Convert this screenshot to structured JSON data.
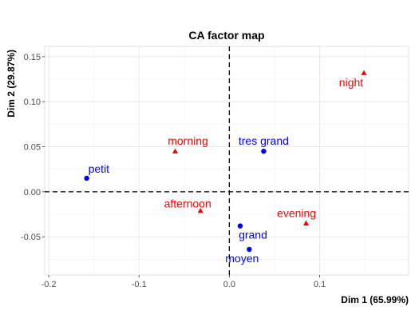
{
  "chart_data": {
    "type": "scatter",
    "title": "CA factor map",
    "xlabel": "Dim 1 (65.99%)",
    "ylabel": "Dim 2 (29.87%)",
    "xlim": [
      -0.2045,
      0.1985
    ],
    "ylim": [
      -0.0925,
      0.1615
    ],
    "x_ticks": [
      -0.2,
      -0.1,
      0.0,
      0.1
    ],
    "x_tick_labels": [
      "-0.2",
      "-0.1",
      "0.0",
      "0.1"
    ],
    "y_ticks": [
      -0.05,
      0.0,
      0.05,
      0.1,
      0.15
    ],
    "y_tick_labels": [
      "-0.05",
      "0.00",
      "0.05",
      "0.10",
      "0.15"
    ],
    "grid": true,
    "reference_lines": {
      "x": 0,
      "y": 0,
      "style": "dashed"
    },
    "colors": {
      "rows": "#0000ff",
      "columns": "#ff0000"
    },
    "series": [
      {
        "marker": "circle",
        "color": "#0000ff",
        "points": [
          {
            "label": "petit",
            "x": -0.158,
            "y": 0.015
          },
          {
            "label": "tres grand",
            "x": 0.038,
            "y": 0.045
          },
          {
            "label": "grand",
            "x": 0.012,
            "y": -0.038
          },
          {
            "label": "moyen",
            "x": 0.022,
            "y": -0.064
          }
        ]
      },
      {
        "marker": "triangle",
        "color": "#ff0000",
        "points": [
          {
            "label": "night",
            "x": 0.149,
            "y": 0.132
          },
          {
            "label": "morning",
            "x": -0.06,
            "y": 0.045
          },
          {
            "label": "afternoon",
            "x": -0.032,
            "y": -0.021
          },
          {
            "label": "evening",
            "x": 0.085,
            "y": -0.035
          }
        ]
      }
    ]
  }
}
